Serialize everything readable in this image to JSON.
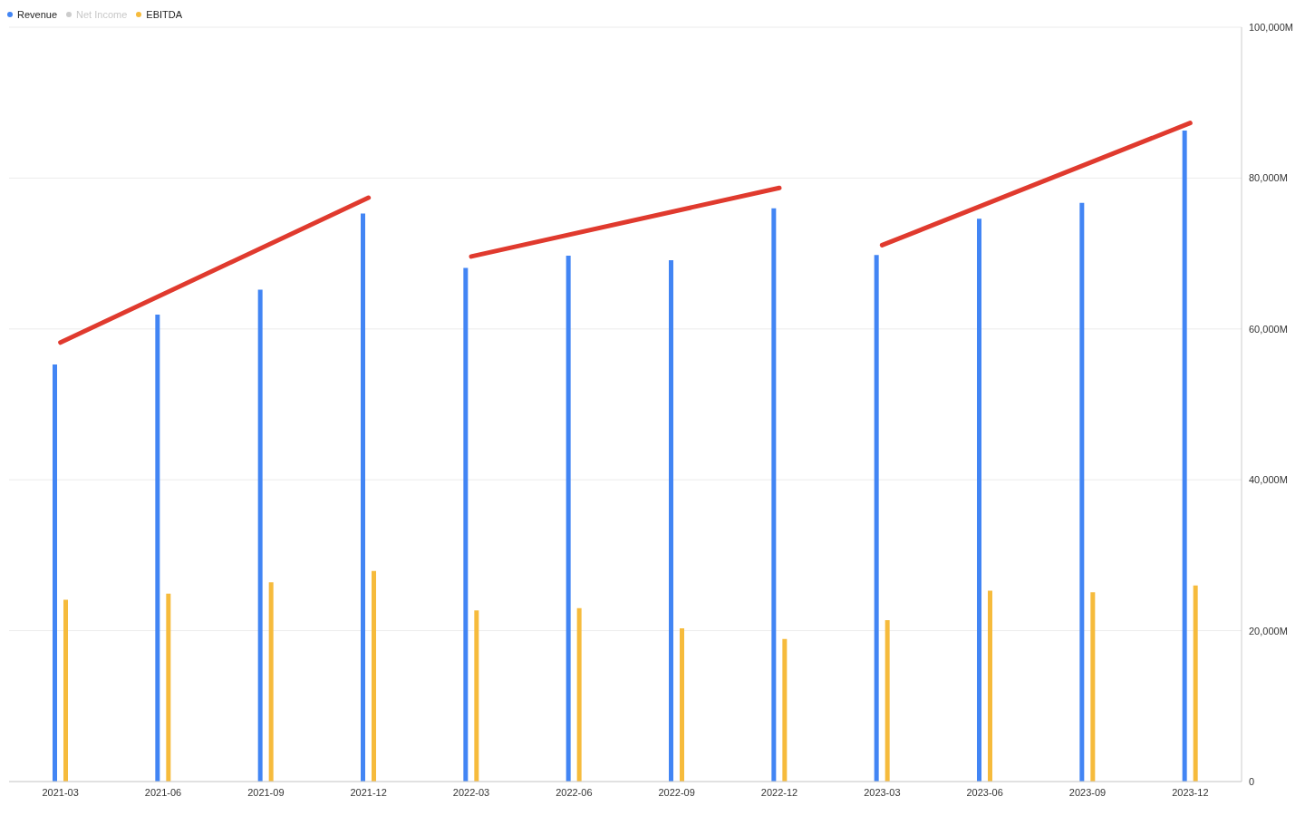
{
  "chart_data": {
    "type": "bar",
    "categories": [
      "2021-03",
      "2021-06",
      "2021-09",
      "2021-12",
      "2022-03",
      "2022-06",
      "2022-09",
      "2022-12",
      "2023-03",
      "2023-06",
      "2023-09",
      "2023-12"
    ],
    "series": [
      {
        "name": "Revenue",
        "color": "#4285f4",
        "values": [
          55300,
          61900,
          65200,
          75300,
          68100,
          69700,
          69100,
          76000,
          69800,
          74600,
          76700,
          86300
        ]
      },
      {
        "name": "Net Income",
        "color": "#cccccc",
        "values": [
          null,
          null,
          null,
          null,
          null,
          null,
          null,
          null,
          null,
          null,
          null,
          null
        ]
      },
      {
        "name": "EBITDA",
        "color": "#f6bb3c",
        "values": [
          24100,
          24900,
          26400,
          27900,
          22700,
          23000,
          20300,
          18900,
          21400,
          25300,
          25100,
          26000
        ]
      },
      {
        "type": "line",
        "color": "#e03a2e",
        "values": [
          58200,
          null,
          null,
          77400,
          null,
          null,
          null,
          null,
          null,
          null,
          null,
          null
        ]
      },
      {
        "type": "line",
        "color": "#e03a2e",
        "values": [
          null,
          null,
          null,
          null,
          69600,
          null,
          null,
          78700,
          null,
          null,
          null,
          null
        ]
      },
      {
        "type": "line",
        "color": "#e03a2e",
        "values": [
          null,
          null,
          null,
          null,
          null,
          null,
          null,
          null,
          71100,
          null,
          null,
          87300
        ]
      }
    ],
    "ylim": [
      0,
      100000
    ],
    "yticks": [
      0,
      {
        "value": 20000,
        "label": "20,000M"
      },
      {
        "value": 40000,
        "label": "40,000M"
      },
      {
        "value": 60000,
        "label": "60,000M"
      },
      {
        "value": 80000,
        "label": "80,000M"
      },
      {
        "value": 100000,
        "label": "100,000M"
      }
    ],
    "grid": "y",
    "legend": "top left",
    "marker": "none",
    "line_style": "solid"
  }
}
